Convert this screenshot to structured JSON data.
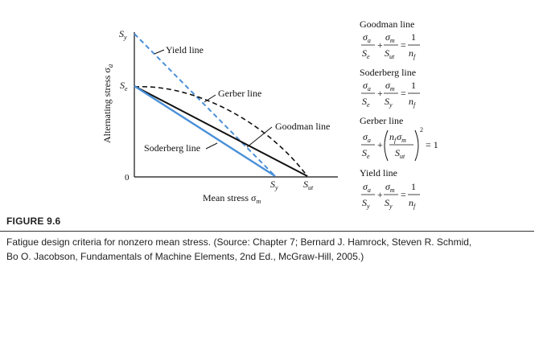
{
  "diagram": {
    "y_axis_label": "Alternating stress σ",
    "y_axis_label_sub": "a",
    "x_axis_label": "Mean stress σ",
    "x_axis_label_sub": "m",
    "origin_label": "0",
    "sy_y_label": "S",
    "sy_y_sub": "y",
    "se_label": "S",
    "se_sub": "e",
    "sy_x_label": "S",
    "sy_x_sub": "y",
    "sut_x_label": "S",
    "sut_x_sub": "ut",
    "curve_labels": {
      "yield": "Yield line",
      "gerber": "Gerber line",
      "goodman": "Goodman line",
      "soderberg": "Soderberg line"
    },
    "colors": {
      "blue": "#4a90d9",
      "black": "#111111"
    }
  },
  "equations": {
    "goodman": {
      "title": "Goodman line"
    },
    "soderberg": {
      "title": "Soderberg line"
    },
    "gerber": {
      "title": "Gerber line",
      "rhs": "= 1",
      "power": "2"
    },
    "yield": {
      "title": "Yield line"
    },
    "sigma": "σ",
    "sub_a": "a",
    "sub_m": "m",
    "S": "S",
    "sub_e": "e",
    "sub_ut": "ut",
    "sub_y": "y",
    "plus": "+",
    "equals": "=",
    "one": "1",
    "n": "n",
    "sub_f": "f"
  },
  "figure": {
    "label": "FIGURE 9.6",
    "caption_line1": "Fatigue design criteria for nonzero mean stress. (Source: Chapter 7; Bernard J. Hamrock, Steven R. Schmid,",
    "caption_line2": "Bo O. Jacobson, Fundamentals of Machine Elements, 2nd Ed., McGraw-Hill, 2005.)"
  }
}
